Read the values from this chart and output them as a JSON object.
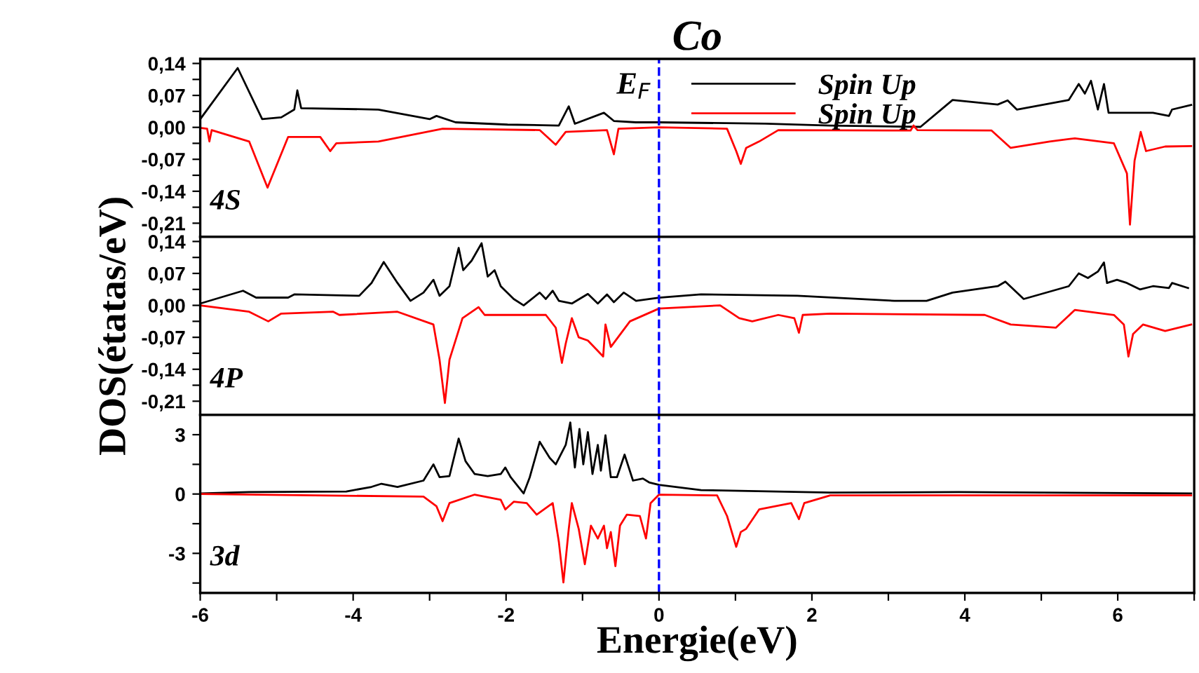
{
  "chart_data": [
    {
      "type": "line",
      "title": "Co",
      "tick_labels": "y",
      "legend": "top right",
      "grid": false,
      "xlim": [
        -6,
        7
      ],
      "ylim": [
        -0.24,
        0.15
      ],
      "yticks": [
        {
          "value": 0.14,
          "label": "0,14"
        },
        {
          "value": 0.105,
          "label": null
        },
        {
          "value": 0.07,
          "label": "0,07"
        },
        {
          "value": 0.035,
          "label": null
        },
        {
          "value": 0,
          "label": "0,00"
        },
        {
          "value": -0.035,
          "label": null
        },
        {
          "value": -0.07,
          "label": "-0,07"
        },
        {
          "value": -0.105,
          "label": null
        },
        {
          "value": -0.14,
          "label": "-0,14"
        },
        {
          "value": -0.175,
          "label": null
        },
        {
          "value": -0.21,
          "label": "-0,21"
        }
      ],
      "xticks": [
        {
          "value": -6,
          "label": null
        },
        {
          "value": -5,
          "label": null
        },
        {
          "value": -4,
          "label": null
        },
        {
          "value": -3,
          "label": null
        },
        {
          "value": -2,
          "label": null
        },
        {
          "value": -1,
          "label": null
        },
        {
          "value": 0,
          "label": null
        },
        {
          "value": 1,
          "label": null
        },
        {
          "value": 2,
          "label": null
        },
        {
          "value": 3,
          "label": null
        },
        {
          "value": 4,
          "label": null
        },
        {
          "value": 5,
          "label": null
        },
        {
          "value": 6,
          "label": null
        },
        {
          "value": 7,
          "label": null
        }
      ],
      "ref_lines": [
        {
          "axis": "x",
          "value": 0,
          "label": null,
          "color": "#0000ff",
          "line_style": "dashed"
        }
      ],
      "annotations": [
        {
          "text": "E$_{F}$",
          "x": 0,
          "y": 0.09
        },
        "4S"
      ],
      "series": [
        {
          "name": "Spin Up",
          "color": "#000000",
          "x": [
            -6.0,
            -5.51,
            -5.19,
            -4.94,
            -4.77,
            -4.73,
            -4.68,
            -3.67,
            -3.0,
            -2.91,
            -2.66,
            -1.98,
            -1.31,
            -1.18,
            -1.1,
            -0.72,
            -0.59,
            -0.3,
            0,
            1.39,
            2.24,
            3.42,
            3.84,
            4.43,
            4.56,
            4.68,
            5.36,
            5.49,
            5.57,
            5.65,
            5.74,
            5.82,
            5.88,
            6.46,
            6.67,
            6.71,
            6.96
          ],
          "values": [
            0.018,
            0.13,
            0.018,
            0.022,
            0.039,
            0.081,
            0.042,
            0.039,
            0.018,
            0.025,
            0.011,
            0.006,
            0.004,
            0.046,
            0.008,
            0.032,
            0.014,
            0.011,
            0.011,
            0.008,
            0.004,
            0.001,
            0.06,
            0.05,
            0.059,
            0.039,
            0.06,
            0.095,
            0.074,
            0.102,
            0.039,
            0.095,
            0.032,
            0.032,
            0.025,
            0.039,
            0.049
          ]
        },
        {
          "name": "Spin Up",
          "color": "#ff0000",
          "x": [
            -6.0,
            -5.91,
            -5.88,
            -5.85,
            -5.36,
            -5.12,
            -4.85,
            -4.43,
            -4.3,
            -4.22,
            -3.67,
            -2.83,
            -1.56,
            -1.35,
            -1.22,
            -0.68,
            -0.59,
            -0.53,
            0,
            0.89,
            1.01,
            1.07,
            1.14,
            1.31,
            1.56,
            3.29,
            3.33,
            3.38,
            4.35,
            4.6,
            5.11,
            5.44,
            5.95,
            6.12,
            6.16,
            6.22,
            6.3,
            6.37,
            6.62,
            6.96
          ],
          "values": [
            -0.001,
            -0.003,
            -0.031,
            -0.006,
            -0.031,
            -0.132,
            -0.021,
            -0.021,
            -0.052,
            -0.035,
            -0.031,
            -0.003,
            -0.006,
            -0.038,
            -0.01,
            -0.006,
            -0.059,
            -0.003,
            0,
            -0.003,
            -0.052,
            -0.08,
            -0.045,
            -0.031,
            -0.006,
            -0.007,
            0.004,
            -0.006,
            -0.007,
            -0.045,
            -0.031,
            -0.024,
            -0.035,
            -0.101,
            -0.213,
            -0.073,
            -0.01,
            -0.052,
            -0.042,
            -0.041
          ]
        }
      ]
    },
    {
      "type": "line",
      "ylabel": "DOS(étatas/eV)",
      "tick_labels": "y",
      "grid": false,
      "xlim": [
        -6,
        7
      ],
      "ylim": [
        -0.24,
        0.15
      ],
      "yticks": [
        {
          "value": 0.14,
          "label": "0,14"
        },
        {
          "value": 0.105,
          "label": null
        },
        {
          "value": 0.07,
          "label": "0,07"
        },
        {
          "value": 0.035,
          "label": null
        },
        {
          "value": 0,
          "label": "0,00"
        },
        {
          "value": -0.035,
          "label": null
        },
        {
          "value": -0.07,
          "label": "-0,07"
        },
        {
          "value": -0.105,
          "label": null
        },
        {
          "value": -0.14,
          "label": "-0,14"
        },
        {
          "value": -0.175,
          "label": null
        },
        {
          "value": -0.21,
          "label": "-0,21"
        }
      ],
      "xticks": [
        {
          "value": -6,
          "label": null
        },
        {
          "value": -5,
          "label": null
        },
        {
          "value": -4,
          "label": null
        },
        {
          "value": -3,
          "label": null
        },
        {
          "value": -2,
          "label": null
        },
        {
          "value": -1,
          "label": null
        },
        {
          "value": 0,
          "label": null
        },
        {
          "value": 1,
          "label": null
        },
        {
          "value": 2,
          "label": null
        },
        {
          "value": 3,
          "label": null
        },
        {
          "value": 4,
          "label": null
        },
        {
          "value": 5,
          "label": null
        },
        {
          "value": 6,
          "label": null
        },
        {
          "value": 7,
          "label": null
        }
      ],
      "ref_lines": [
        {
          "axis": "x",
          "value": 0,
          "label": null,
          "color": "#0000ff",
          "line_style": "dashed"
        }
      ],
      "annotations": [
        "4P"
      ],
      "series": [
        {
          "color": "#000000",
          "x": [
            -6.0,
            -5.44,
            -5.27,
            -4.85,
            -4.77,
            -3.92,
            -3.76,
            -3.6,
            -3.42,
            -3.25,
            -3.08,
            -2.95,
            -2.87,
            -2.74,
            -2.62,
            -2.56,
            -2.45,
            -2.32,
            -2.24,
            -2.15,
            -2.07,
            -1.9,
            -1.77,
            -1.56,
            -1.48,
            -1.39,
            -1.31,
            -1.14,
            -0.93,
            -0.8,
            -0.68,
            -0.59,
            -0.46,
            -0.3,
            0,
            0.55,
            1.81,
            3.08,
            3.5,
            3.84,
            4.43,
            4.53,
            4.77,
            5.36,
            5.49,
            5.61,
            5.74,
            5.82,
            5.86,
            5.99,
            6.12,
            6.29,
            6.46,
            6.67,
            6.71,
            6.92
          ],
          "values": [
            0.004,
            0.032,
            0.017,
            0.017,
            0.024,
            0.021,
            0.049,
            0.095,
            0.049,
            0.01,
            0.028,
            0.056,
            0.021,
            0.042,
            0.126,
            0.077,
            0.098,
            0.136,
            0.063,
            0.077,
            0.042,
            0.014,
            0,
            0.028,
            0.014,
            0.032,
            0.01,
            0.004,
            0.025,
            0.004,
            0.024,
            0.007,
            0.028,
            0.01,
            0.017,
            0.024,
            0.021,
            0.01,
            0.01,
            0.028,
            0.042,
            0.052,
            0.014,
            0.042,
            0.07,
            0.06,
            0.074,
            0.094,
            0.049,
            0.056,
            0.049,
            0.035,
            0.042,
            0.038,
            0.049,
            0.038
          ]
        },
        {
          "color": "#ff0000",
          "x": [
            -6.0,
            -5.36,
            -5.11,
            -4.94,
            -4.26,
            -4.18,
            -3.42,
            -2.95,
            -2.87,
            -2.8,
            -2.74,
            -2.57,
            -2.36,
            -2.28,
            -1.48,
            -1.35,
            -1.27,
            -1.22,
            -1.14,
            -1.05,
            -0.93,
            -0.73,
            -0.7,
            -0.63,
            -0.38,
            0,
            0.8,
            1.05,
            1.22,
            1.56,
            1.77,
            1.83,
            1.88,
            2.24,
            4.26,
            4.6,
            5.19,
            5.44,
            5.95,
            6.08,
            6.14,
            6.2,
            6.33,
            6.62,
            6.96
          ],
          "values": [
            0,
            -0.014,
            -0.035,
            -0.018,
            -0.014,
            -0.021,
            -0.014,
            -0.042,
            -0.119,
            -0.214,
            -0.119,
            -0.028,
            -0.004,
            -0.021,
            -0.021,
            -0.049,
            -0.126,
            -0.084,
            -0.028,
            -0.07,
            -0.077,
            -0.112,
            -0.042,
            -0.091,
            -0.035,
            -0.007,
            0,
            -0.028,
            -0.035,
            -0.021,
            -0.028,
            -0.06,
            -0.021,
            -0.018,
            -0.021,
            -0.042,
            -0.049,
            -0.01,
            -0.021,
            -0.042,
            -0.112,
            -0.063,
            -0.042,
            -0.056,
            -0.042
          ]
        }
      ]
    },
    {
      "type": "line",
      "xlabel": "Energie(eV)",
      "grid": false,
      "xlim": [
        -6,
        7
      ],
      "ylim": [
        -5,
        4
      ],
      "yticks": [
        {
          "value": 3,
          "label": "3"
        },
        {
          "value": 1.5,
          "label": null
        },
        {
          "value": 0,
          "label": "0"
        },
        {
          "value": -1.5,
          "label": null
        },
        {
          "value": -3,
          "label": "-3"
        },
        {
          "value": -4.5,
          "label": null
        }
      ],
      "xticks": [
        -6,
        {
          "value": -5,
          "label": null
        },
        -4,
        {
          "value": -3,
          "label": null
        },
        -2,
        {
          "value": -1,
          "label": null
        },
        0,
        {
          "value": 1,
          "label": null
        },
        2,
        {
          "value": 3,
          "label": null
        },
        4,
        {
          "value": 5,
          "label": null
        },
        6,
        {
          "value": 7,
          "label": null
        }
      ],
      "ref_lines": [
        {
          "axis": "x",
          "value": 0,
          "label": null,
          "color": "#0000ff",
          "line_style": "dashed"
        }
      ],
      "annotations": [
        "3d"
      ],
      "series": [
        {
          "color": "#000000",
          "x": [
            -6.0,
            -5.36,
            -4.09,
            -3.76,
            -3.63,
            -3.42,
            -3.08,
            -2.95,
            -2.87,
            -2.74,
            -2.62,
            -2.53,
            -2.41,
            -2.24,
            -2.07,
            -2.01,
            -1.94,
            -1.77,
            -1.69,
            -1.56,
            -1.43,
            -1.35,
            -1.22,
            -1.16,
            -1.1,
            -1.04,
            -0.99,
            -0.93,
            -0.87,
            -0.8,
            -0.76,
            -0.7,
            -0.63,
            -0.55,
            -0.45,
            -0.34,
            -0.21,
            -0.13,
            0,
            0.55,
            2.24,
            3.92,
            6.96
          ],
          "values": [
            0.03,
            0.1,
            0.13,
            0.36,
            0.52,
            0.36,
            0.68,
            1.5,
            0.85,
            0.91,
            2.8,
            1.66,
            1.01,
            0.91,
            1.01,
            1.34,
            0.85,
            0.03,
            0.85,
            2.64,
            1.83,
            1.5,
            2.48,
            3.62,
            1.34,
            3.29,
            1.5,
            3.13,
            1.01,
            2.48,
            1.18,
            2.97,
            0.85,
            0.85,
            1.99,
            0.68,
            0.78,
            0.59,
            0.46,
            0.2,
            0.07,
            0.1,
            0.03
          ]
        },
        {
          "color": "#ff0000",
          "x": [
            -6.0,
            -3.08,
            -2.91,
            -2.83,
            -2.74,
            -2.41,
            -2.07,
            -2.01,
            -1.9,
            -1.73,
            -1.6,
            -1.39,
            -1.31,
            -1.25,
            -1.18,
            -1.14,
            -1.05,
            -0.97,
            -0.89,
            -0.8,
            -0.72,
            -0.68,
            -0.63,
            -0.57,
            -0.51,
            -0.42,
            -0.25,
            -0.17,
            -0.11,
            0,
            0.76,
            0.89,
            1.01,
            1.07,
            1.14,
            1.31,
            1.73,
            1.83,
            1.9,
            2.24,
            6.96
          ],
          "values": [
            0,
            -0.13,
            -0.62,
            -1.37,
            -0.46,
            -0.03,
            -0.29,
            -0.78,
            -0.39,
            -0.46,
            -1.04,
            -0.46,
            -2.41,
            -4.47,
            -1.76,
            -0.46,
            -1.76,
            -3.55,
            -1.6,
            -2.25,
            -1.6,
            -2.74,
            -1.92,
            -3.65,
            -1.6,
            -1.04,
            -1.11,
            -2.25,
            -0.46,
            -0.03,
            -0.07,
            -1.11,
            -2.67,
            -1.92,
            -1.76,
            -0.78,
            -0.46,
            -1.27,
            -0.46,
            -0.07,
            -0.07
          ]
        }
      ]
    }
  ]
}
